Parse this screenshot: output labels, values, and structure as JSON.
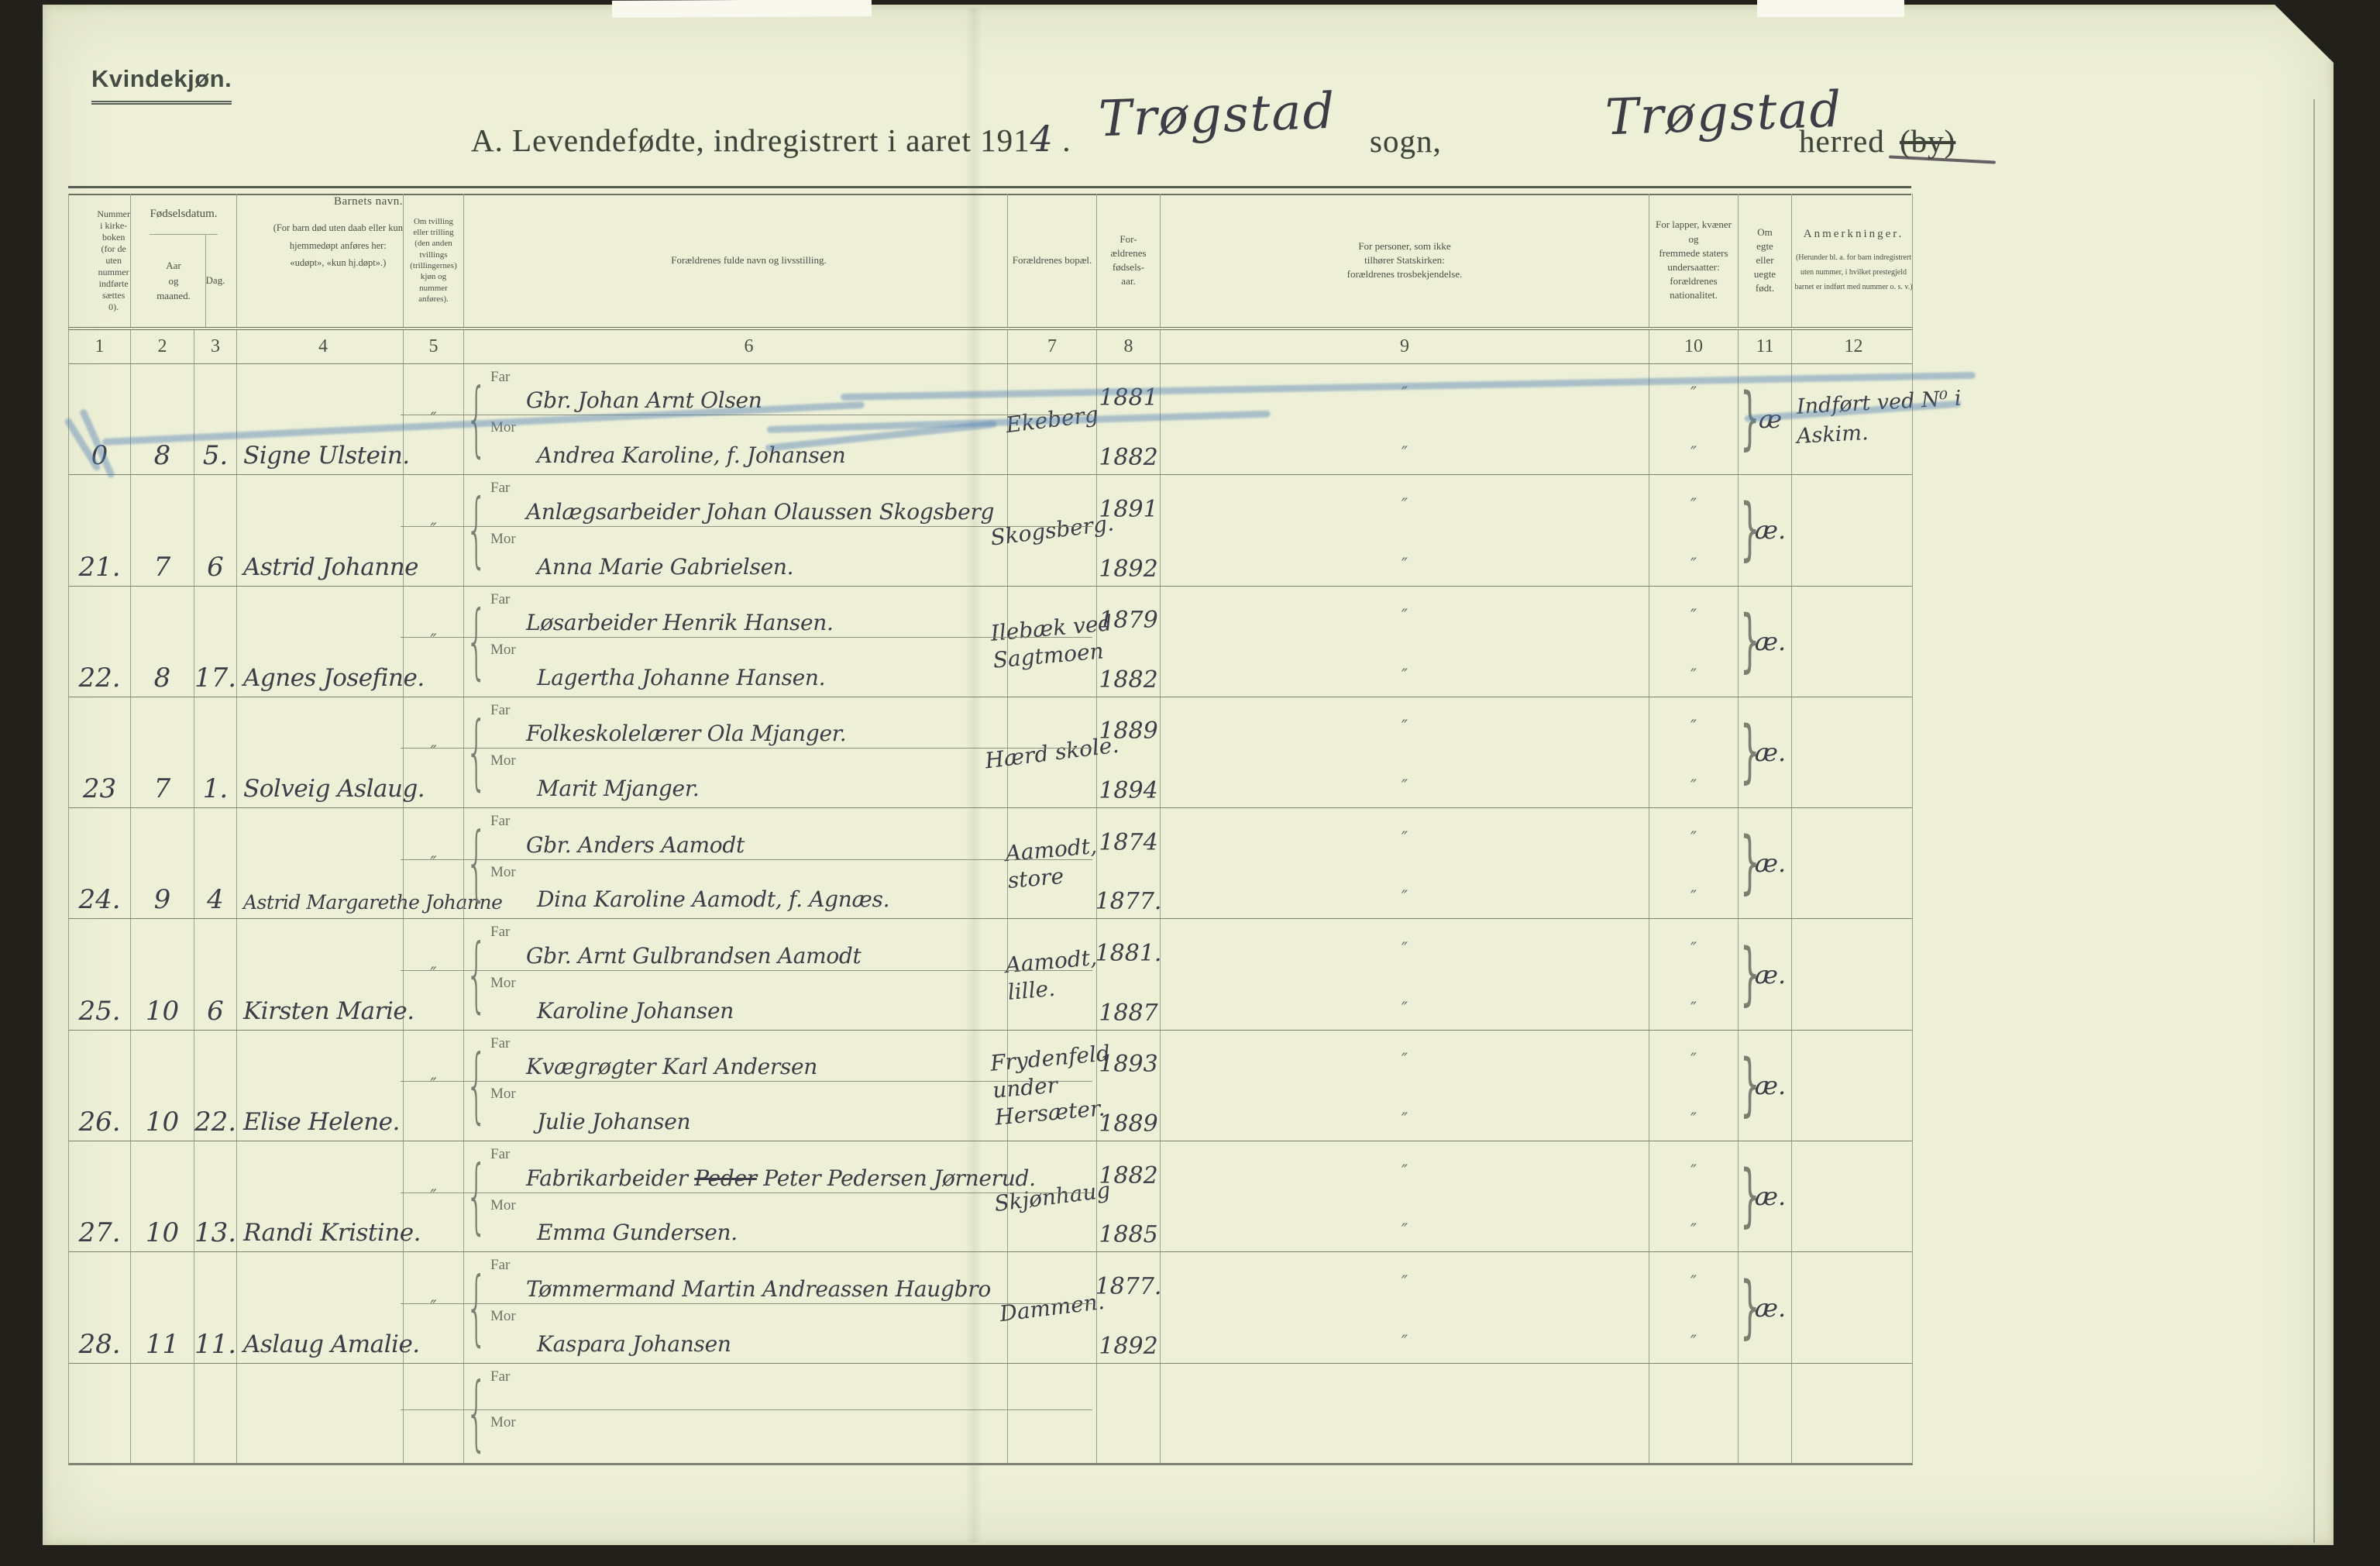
{
  "colors": {
    "paper": "#edf0d7",
    "ink_hand": "#3c3d46",
    "ink_print": "#4a5045",
    "line": "#9aa089",
    "line_dark": "#7d8370",
    "blue_pencil": "#4e7cb4",
    "scan_bg": "#22201a"
  },
  "page": {
    "corner_label": "Kvindekjøn.",
    "title_printed": "A.  Levendefødte, indregistrert i aaret 191",
    "title_year_hand": "4",
    "title_period": " .",
    "sogn_hand": "Trøgstad",
    "sogn_label": "sogn,",
    "herred_hand": "Trøgstad",
    "herred_label": "herred",
    "herred_by": "(by)"
  },
  "annotations": {
    "row_0_crossed_out_blue_pencil": true,
    "herred_by_struck": true,
    "father_name_word_struck_row_27": "Peder"
  },
  "header": {
    "col1": "Nummer\ni kirke-\nboken\n(for de\nuten\nnummer\nindførte\nsættes\n0).",
    "fodselsdatum": "Fødselsdatum.",
    "aar": "Aar\nog\nmaaned.",
    "dag": "Dag.",
    "col4_title": "Barnets navn.",
    "col4_sub": "(For barn død uten daab eller kun\nhjemmedøpt anføres her:\n«udøpt», «kun hj.døpt».)",
    "col5": "Om tvilling\neller trilling\n(den anden\ntvillings\n(trillingernes)\nkjøn og\nnummer\nanføres).",
    "col6": "Forældrenes fulde navn og livsstilling.",
    "col7": "Forældrenes bopæl.",
    "col8": "For-\nældrenes\nfødsels-\naar.",
    "col9": "For personer, som ikke\ntilhører Statskirken:\nforældrenes trosbekjendelse.",
    "col10": "For lapper, kvæner og\nfremmede staters\nundersaatter:\nforældrenes nationalitet.",
    "col11": "Om\negte\neller\nuegte\nfødt.",
    "col12_title": "Anmerkninger.",
    "col12_sub": "(Herunder bl. a. for barn indregistrert\nuten nummer, i hvilket prestegjeld\nbarnet er indført med nummer o. s. v.)"
  },
  "labels": {
    "far": "Far",
    "mor": "Mor"
  },
  "marks": {
    "ditto": "″"
  },
  "column_numbers": [
    "1",
    "2",
    "3",
    "4",
    "5",
    "6",
    "7",
    "8",
    "9",
    "10",
    "11",
    "12"
  ],
  "rows": [
    {
      "nr": "0",
      "maaned": "8",
      "dag": "5.",
      "navn": "Signe Ulstein.",
      "tvilling": "″",
      "far": "Gbr. Johan Arnt Olsen",
      "mor": "Andrea Karoline, f. Johansen",
      "bopel": [
        "Ekeberg"
      ],
      "aar": [
        "1881",
        "1882"
      ],
      "tros": true,
      "nat": true,
      "egte": "æ",
      "anm": [
        "Indført ved N⁰ i",
        "Askim."
      ]
    },
    {
      "nr": "21.",
      "maaned": "7",
      "dag": "6",
      "navn": "Astrid Johanne",
      "tvilling": "″",
      "far": "Anlægsarbeider Johan Olaussen Skogsberg",
      "mor": "Anna Marie Gabrielsen.",
      "bopel": [
        "Skogsberg."
      ],
      "aar": [
        "1891",
        "1892"
      ],
      "tros": true,
      "nat": true,
      "egte": "æ.",
      "anm": []
    },
    {
      "nr": "22.",
      "maaned": "8",
      "dag": "17.",
      "navn": "Agnes Josefine.",
      "tvilling": "″",
      "far": "Løsarbeider Henrik Hansen.",
      "mor": "Lagertha Johanne Hansen.",
      "bopel": [
        "Ilebæk ved",
        "Sagtmoen"
      ],
      "aar": [
        "1879",
        "1882"
      ],
      "tros": true,
      "nat": true,
      "egte": "æ.",
      "anm": []
    },
    {
      "nr": "23",
      "maaned": "7",
      "dag": "1.",
      "navn": "Solveig Aslaug.",
      "tvilling": "″",
      "far": "Folkeskolelærer Ola Mjanger.",
      "mor": "Marit Mjanger.",
      "bopel": [
        "Hærd skole."
      ],
      "aar": [
        "1889",
        "1894"
      ],
      "tros": true,
      "nat": true,
      "egte": "æ.",
      "anm": []
    },
    {
      "nr": "24.",
      "maaned": "9",
      "dag": "4",
      "navn": "Astrid Margarethe Johanne",
      "tvilling": "″",
      "far": "Gbr. Anders Aamodt",
      "mor": "Dina Karoline Aamodt, f. Agnæs.",
      "bopel": [
        "Aamodt,",
        "store"
      ],
      "aar": [
        "1874",
        "1877."
      ],
      "tros": true,
      "nat": true,
      "egte": "æ.",
      "anm": []
    },
    {
      "nr": "25.",
      "maaned": "10",
      "dag": "6",
      "navn": "Kirsten Marie.",
      "tvilling": "″",
      "far": "Gbr. Arnt Gulbrandsen Aamodt",
      "mor": "Karoline Johansen",
      "bopel": [
        "Aamodt,",
        "lille."
      ],
      "aar": [
        "1881.",
        "1887"
      ],
      "tros": true,
      "nat": true,
      "egte": "æ.",
      "anm": []
    },
    {
      "nr": "26.",
      "maaned": "10",
      "dag": "22.",
      "navn": "Elise Helene.",
      "tvilling": "″",
      "far": "Kvægrøgter Karl Andersen",
      "mor": "Julie Johansen",
      "bopel": [
        "Frydenfeld",
        "under",
        "Hersæter."
      ],
      "aar": [
        "1893",
        "1889"
      ],
      "tros": true,
      "nat": true,
      "egte": "æ.",
      "anm": []
    },
    {
      "nr": "27.",
      "maaned": "10",
      "dag": "13.",
      "navn": "Randi Kristine.",
      "tvilling": "″",
      "far": "Fabrikarbeider Peder Peter Pedersen Jørnerud.",
      "far_struck_word": "Peder",
      "mor": "Emma Gundersen.",
      "bopel": [
        "Skjønhaug"
      ],
      "aar": [
        "1882",
        "1885"
      ],
      "tros": true,
      "nat": true,
      "egte": "æ.",
      "anm": []
    },
    {
      "nr": "28.",
      "maaned": "11",
      "dag": "11.",
      "navn": "Aslaug Amalie.",
      "tvilling": "″",
      "far": "Tømmermand Martin Andreassen Haugbro",
      "mor": "Kaspara Johansen",
      "bopel": [
        "Dammen."
      ],
      "aar": [
        "1877.",
        "1892"
      ],
      "tros": true,
      "nat": true,
      "egte": "æ.",
      "anm": []
    },
    {
      "empty": true,
      "nr": "",
      "maaned": "",
      "dag": "",
      "navn": "",
      "tvilling": "",
      "far": "",
      "mor": "",
      "bopel": [],
      "aar": [
        "",
        ""
      ],
      "tros": false,
      "nat": false,
      "egte": "",
      "anm": []
    }
  ]
}
